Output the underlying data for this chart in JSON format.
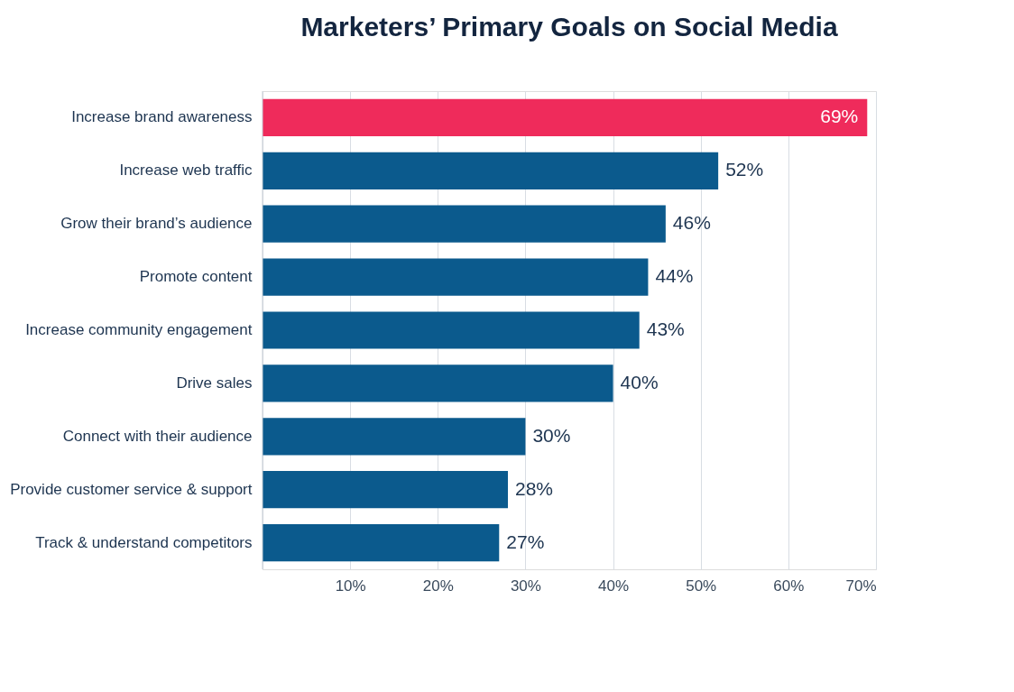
{
  "chart_data": {
    "type": "bar",
    "orientation": "horizontal",
    "title": "Marketers’ Primary Goals on Social Media",
    "categories": [
      "Increase brand awareness",
      "Increase web traffic",
      "Grow their brand’s audience",
      "Promote content",
      "Increase community engagement",
      "Drive sales",
      "Connect with their audience",
      "Provide customer service & support",
      "Track & understand competitors"
    ],
    "values": [
      69,
      52,
      46,
      44,
      43,
      40,
      30,
      28,
      27
    ],
    "colors": [
      "#ef2b5b",
      "#0b5a8d",
      "#0b5a8d",
      "#0b5a8d",
      "#0b5a8d",
      "#0b5a8d",
      "#0b5a8d",
      "#0b5a8d",
      "#0b5a8d"
    ],
    "value_labels": [
      "69%",
      "52%",
      "46%",
      "44%",
      "43%",
      "40%",
      "30%",
      "28%",
      "27%"
    ],
    "xlim": [
      0,
      70
    ],
    "xticks": [
      {
        "value": 0,
        "label": null
      },
      {
        "value": 10,
        "label": "10%"
      },
      {
        "value": 20,
        "label": "20%"
      },
      {
        "value": 30,
        "label": "30%"
      },
      {
        "value": 40,
        "label": "40%"
      },
      {
        "value": 50,
        "label": "50%"
      },
      {
        "value": 60,
        "label": "60%"
      },
      {
        "value": 70,
        "label": "70%"
      }
    ],
    "grid": "x"
  }
}
